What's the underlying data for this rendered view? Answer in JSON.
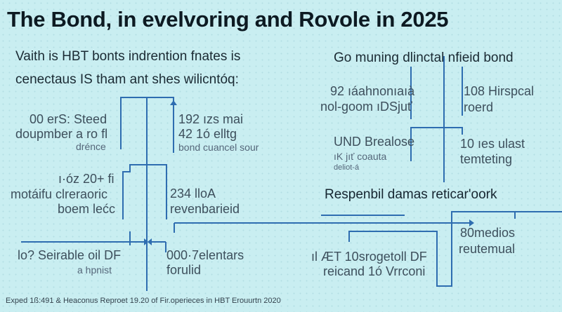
{
  "title": "The Bond, in  evelvoring and Rovole in 2025",
  "subtitle_left": [
    "Vaith  is HBT bonts indrention fnates is",
    "cenectaus IS tham ant shes wilicntóq:"
  ],
  "subtitle_right": "Go muning dlinctal nfieid bond",
  "section_heading": "Respenbil damas reticar'oork",
  "nodes": [
    {
      "lines": [
        "00 erS: Steed",
        "doupmber a ro fl",
        "drénce"
      ]
    },
    {
      "lines": [
        "192 ızs mai",
        "42 1ó elltg",
        "bond cuancel sour"
      ]
    },
    {
      "lines": [
        "ı·óz 20+ fi",
        "motáifu clreraoric",
        "boem lećc"
      ]
    },
    {
      "lines": [
        "234 lloA",
        "revenbarieid"
      ]
    },
    {
      "lines": [
        "92 ıáahnonıaıà",
        "nol-goom ıDSjuť"
      ]
    },
    {
      "lines": [
        "108 Hirspcal",
        "roerd"
      ]
    },
    {
      "lines": [
        "UND Brealose",
        "ıK jıť coauta",
        "deliot-á"
      ]
    },
    {
      "lines": [
        "10 ıes ulast",
        "temteting"
      ]
    },
    {
      "lines": [
        "lo? Seirable oil DF",
        "a hpnist"
      ]
    },
    {
      "lines": [
        "000·7elentars",
        "forulid"
      ]
    },
    {
      "lines": [
        "ıl ÆT 10srogetoll DF",
        "reicand 1ó Vrrconi"
      ]
    },
    {
      "lines": [
        "80medios",
        "reutemual"
      ]
    }
  ],
  "footer": "Exped 1ß:491 & Heaconus Reproet 19.20 of Fir.operieces in HBT Erouurtn 2020",
  "colors": {
    "background": "#c9eef1",
    "connector": "#2e6db0",
    "title": "#0d1a22"
  }
}
